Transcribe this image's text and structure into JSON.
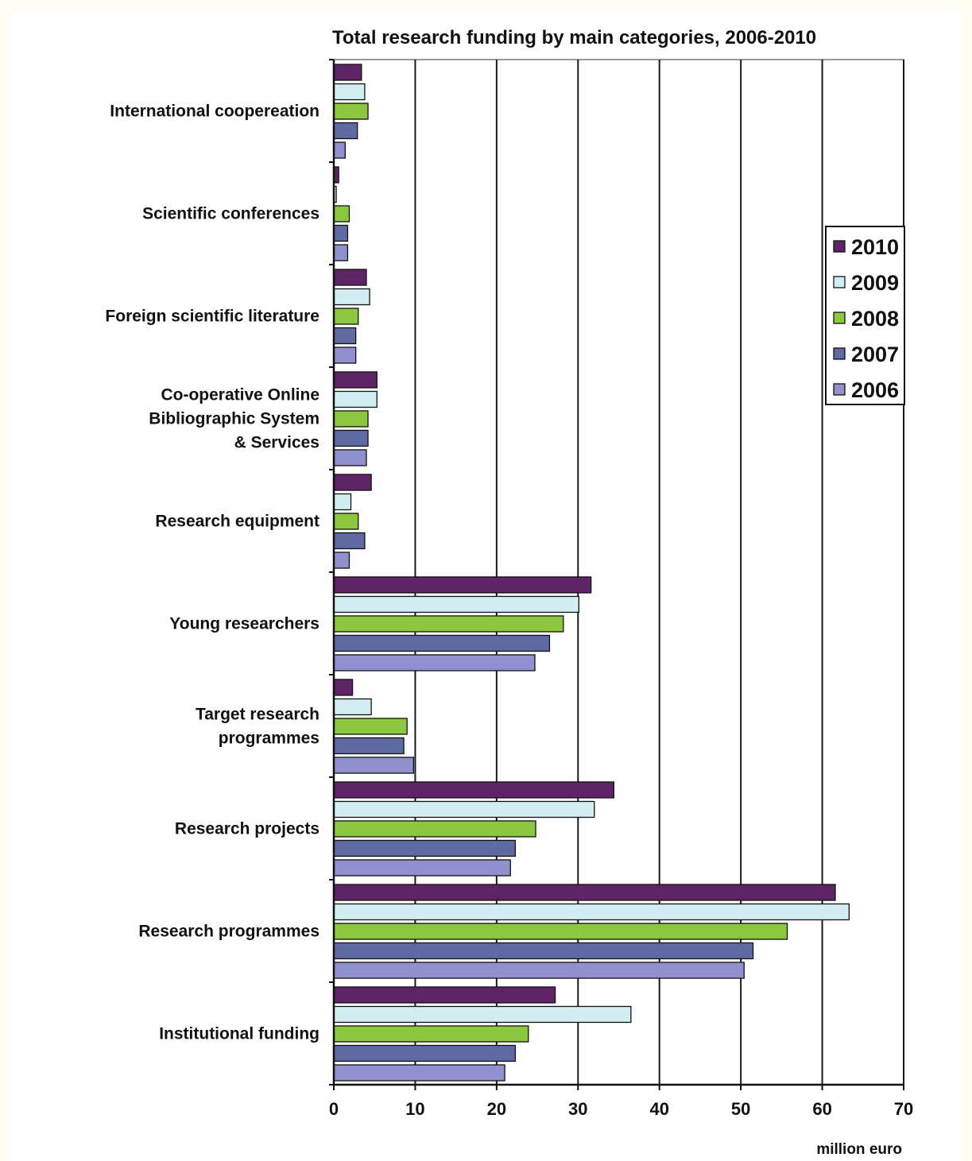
{
  "chart_data": {
    "type": "bar",
    "orientation": "horizontal",
    "title": "Total research funding by main categories, 2006-2010",
    "xlabel": "million euro",
    "ylabel": "",
    "xlim": [
      0,
      70
    ],
    "xticks": [
      "0",
      "10",
      "20",
      "30",
      "40",
      "50",
      "60",
      "70"
    ],
    "grid": "vertical",
    "legend_position": "right",
    "categories": [
      [
        "International coopereation"
      ],
      [
        "Scientific conferences"
      ],
      [
        "Foreign scientific literature"
      ],
      [
        "Co-operative Online",
        "Bibliographic System",
        "& Services"
      ],
      [
        "Research equipment"
      ],
      [
        "Young researchers"
      ],
      [
        "Target research",
        "programmes"
      ],
      [
        "Research projects"
      ],
      [
        "Research programmes"
      ],
      [
        "Institutional funding"
      ]
    ],
    "series": [
      {
        "name": "2010",
        "color": "#5f2466",
        "values": [
          3.4,
          0.6,
          4.0,
          5.3,
          4.6,
          31.6,
          2.3,
          34.4,
          61.6,
          27.2
        ]
      },
      {
        "name": "2009",
        "color": "#d3eef3",
        "values": [
          3.8,
          0.3,
          4.4,
          5.3,
          2.1,
          30.1,
          4.6,
          32.0,
          63.3,
          36.5
        ]
      },
      {
        "name": "2008",
        "color": "#8dc63f",
        "values": [
          4.2,
          1.9,
          3.0,
          4.2,
          3.0,
          28.2,
          9.0,
          24.8,
          55.7,
          23.9
        ]
      },
      {
        "name": "2007",
        "color": "#5f6aa3",
        "values": [
          2.9,
          1.7,
          2.7,
          4.2,
          3.8,
          26.5,
          8.6,
          22.3,
          51.5,
          22.3
        ]
      },
      {
        "name": "2006",
        "color": "#9090cf",
        "values": [
          1.4,
          1.7,
          2.7,
          4.0,
          1.9,
          24.7,
          9.8,
          21.7,
          50.4,
          21.0
        ]
      }
    ]
  }
}
